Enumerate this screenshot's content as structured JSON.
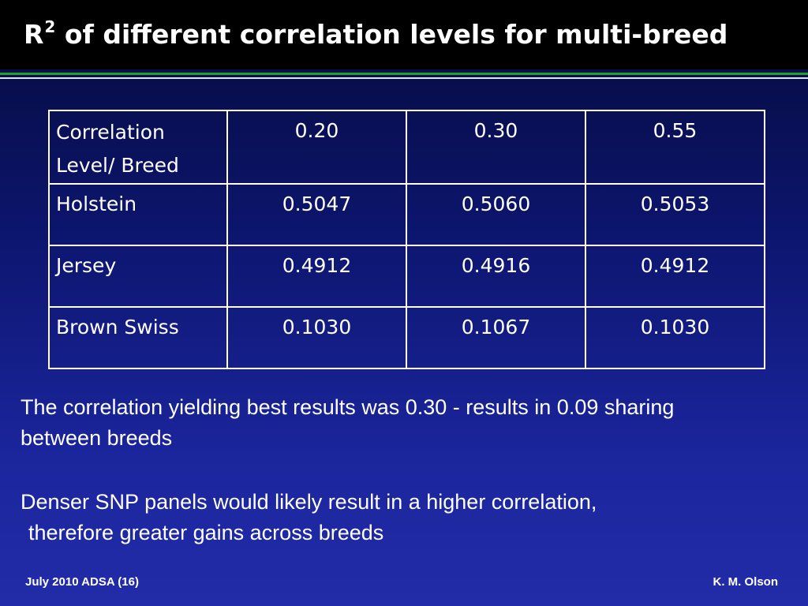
{
  "slide": {
    "title_prefix": "R",
    "title_sup": "2",
    "title_rest": " of different correlation levels for multi-breed"
  },
  "table": {
    "header": [
      "Correlation Level/ Breed",
      "0.20",
      "0.30",
      "0.55"
    ],
    "rows": [
      {
        "breed": "Holstein",
        "values": [
          "0.5047",
          "0.5060",
          "0.5053"
        ]
      },
      {
        "breed": "Jersey",
        "values": [
          "0.4912",
          "0.4916",
          "0.4912"
        ]
      },
      {
        "breed": "Brown Swiss",
        "values": [
          "0.1030",
          "0.1067",
          "0.1030"
        ]
      }
    ]
  },
  "bullets": {
    "first": "The correlation yielding best results was 0.30 - results in 0.09 sharing between breeds",
    "second_line1": "Denser SNP panels would likely result in a higher correlation,",
    "second_line2": "therefore greater gains across breeds"
  },
  "footer": {
    "left": "July 2010 ADSA (16)",
    "right": "K. M. Olson"
  },
  "colors": {
    "title_bar": "#000000",
    "accent_green": "#1fa02a",
    "background_top": "#050a3a",
    "background_bottom": "#222ca8"
  }
}
